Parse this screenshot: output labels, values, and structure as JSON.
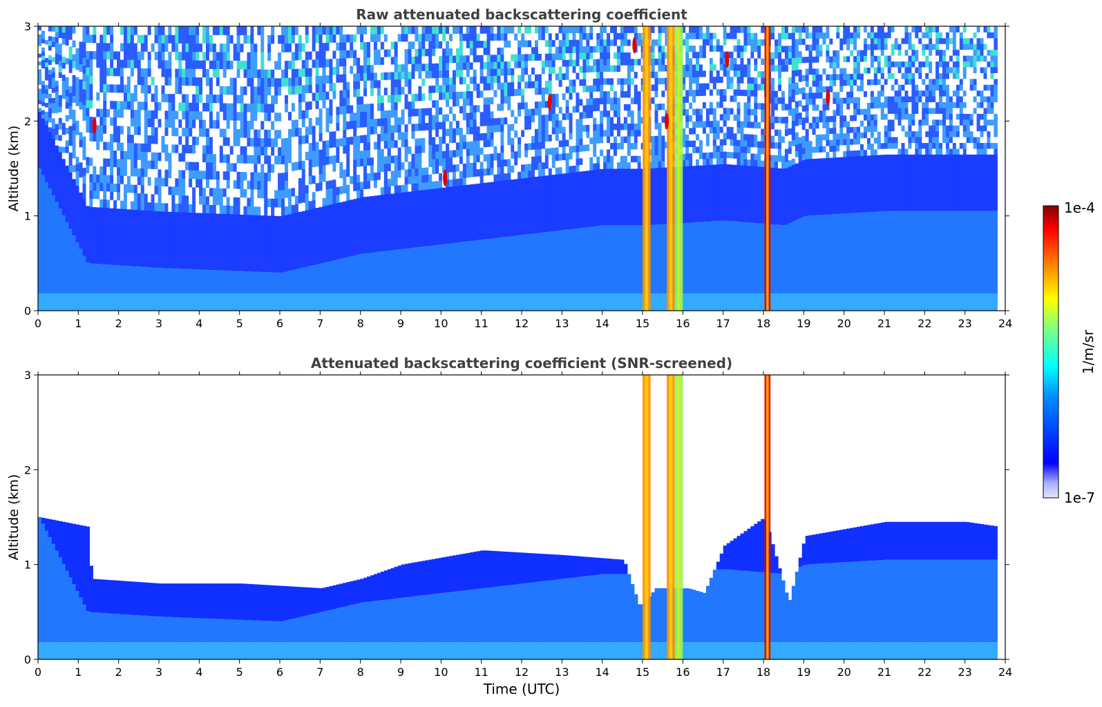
{
  "chart_data": [
    {
      "type": "heatmap",
      "title": "Raw attenuated backscattering coefficient",
      "xlabel": "",
      "ylabel": "Altitude (km)",
      "xlim": [
        0,
        24
      ],
      "ylim": [
        0,
        3
      ],
      "xticks": [
        0,
        1,
        2,
        3,
        4,
        5,
        6,
        7,
        8,
        9,
        10,
        11,
        12,
        13,
        14,
        15,
        16,
        17,
        18,
        19,
        20,
        21,
        22,
        23,
        24
      ],
      "yticks": [
        0,
        1,
        2,
        3
      ],
      "log_scale_z": true,
      "zlim": [
        1e-07,
        0.0001
      ],
      "screening": "none",
      "boundary_layer_top_km": [
        [
          0,
          1.5
        ],
        [
          1.2,
          0.5
        ],
        [
          3,
          0.45
        ],
        [
          6,
          0.4
        ],
        [
          7,
          0.5
        ],
        [
          8,
          0.6
        ],
        [
          10,
          0.7
        ],
        [
          12,
          0.8
        ],
        [
          14,
          0.9
        ],
        [
          15,
          0.9
        ],
        [
          17,
          0.95
        ],
        [
          18.5,
          0.9
        ],
        [
          19,
          1.0
        ],
        [
          21,
          1.05
        ],
        [
          24,
          1.05
        ]
      ],
      "cloud_columns_utc": [
        {
          "center": 15.1,
          "width": 0.2,
          "altitude_range_km": [
            0,
            3
          ],
          "intensity": "orange"
        },
        {
          "center": 15.7,
          "width": 0.2,
          "altitude_range_km": [
            0,
            3
          ],
          "intensity": "orange"
        },
        {
          "center": 15.9,
          "width": 0.2,
          "altitude_range_km": [
            0,
            3
          ],
          "intensity": "green"
        },
        {
          "center": 18.1,
          "width": 0.15,
          "altitude_range_km": [
            0,
            3
          ],
          "intensity": "red"
        }
      ],
      "aerosol_features": [
        {
          "t": 1.4,
          "alt_km": 1.95,
          "intensity": "red"
        },
        {
          "t": 10.1,
          "alt_km": 1.4,
          "intensity": "red"
        },
        {
          "t": 12.7,
          "alt_km": 2.2,
          "intensity": "red"
        },
        {
          "t": 14.8,
          "alt_km": 2.8,
          "intensity": "red"
        },
        {
          "t": 15.6,
          "alt_km": 2.0,
          "intensity": "red"
        },
        {
          "t": 17.1,
          "alt_km": 2.65,
          "intensity": "red"
        },
        {
          "t": 19.6,
          "alt_km": 2.25,
          "intensity": "red"
        }
      ]
    },
    {
      "type": "heatmap",
      "title": "Attenuated backscattering coefficient (SNR-screened)",
      "xlabel": "Time (UTC)",
      "ylabel": "Altitude (km)",
      "xlim": [
        0,
        24
      ],
      "ylim": [
        0,
        3
      ],
      "xticks": [
        0,
        1,
        2,
        3,
        4,
        5,
        6,
        7,
        8,
        9,
        10,
        11,
        12,
        13,
        14,
        15,
        16,
        17,
        18,
        19,
        20,
        21,
        22,
        23,
        24
      ],
      "yticks": [
        0,
        1,
        2,
        3
      ],
      "log_scale_z": true,
      "zlim": [
        1e-07,
        0.0001
      ],
      "screening": "SNR",
      "boundary_layer_top_km": [
        [
          0,
          1.5
        ],
        [
          1.2,
          0.5
        ],
        [
          3,
          0.45
        ],
        [
          6,
          0.4
        ],
        [
          7,
          0.5
        ],
        [
          8,
          0.6
        ],
        [
          10,
          0.7
        ],
        [
          12,
          0.8
        ],
        [
          14,
          0.9
        ],
        [
          15,
          0.9
        ],
        [
          17,
          0.95
        ],
        [
          18.5,
          0.9
        ],
        [
          19,
          1.0
        ],
        [
          21,
          1.05
        ],
        [
          24,
          1.05
        ]
      ],
      "valid_signal_top_km": [
        [
          0,
          1.5
        ],
        [
          1.2,
          1.4
        ],
        [
          1.3,
          0.85
        ],
        [
          3,
          0.8
        ],
        [
          5,
          0.8
        ],
        [
          7,
          0.75
        ],
        [
          8,
          0.85
        ],
        [
          9,
          1.0
        ],
        [
          11,
          1.15
        ],
        [
          13,
          1.1
        ],
        [
          14.5,
          1.05
        ],
        [
          14.9,
          0.55
        ],
        [
          15.3,
          0.75
        ],
        [
          16.1,
          0.75
        ],
        [
          16.5,
          0.7
        ],
        [
          17,
          1.2
        ],
        [
          18,
          1.5
        ],
        [
          18.6,
          0.6
        ],
        [
          19,
          1.3
        ],
        [
          21,
          1.45
        ],
        [
          23,
          1.45
        ],
        [
          23.8,
          1.4
        ]
      ],
      "cloud_columns_utc": [
        {
          "center": 15.1,
          "width": 0.2,
          "altitude_range_km": [
            0,
            3
          ],
          "intensity": "orange"
        },
        {
          "center": 15.7,
          "width": 0.2,
          "altitude_range_km": [
            0,
            3
          ],
          "intensity": "orange"
        },
        {
          "center": 15.9,
          "width": 0.2,
          "altitude_range_km": [
            0,
            3
          ],
          "intensity": "green"
        },
        {
          "center": 18.1,
          "width": 0.15,
          "altitude_range_km": [
            0,
            3
          ],
          "intensity": "red"
        }
      ]
    }
  ],
  "colorbar": {
    "label": "1/m/sr",
    "max_label": "1e-4",
    "min_label": "1e-7",
    "colormap": "jet",
    "stops": [
      "#e6e6ff",
      "#0000ff",
      "#00a0ff",
      "#00ffff",
      "#80ff80",
      "#ffff00",
      "#ff8000",
      "#ff0000",
      "#800000"
    ]
  }
}
